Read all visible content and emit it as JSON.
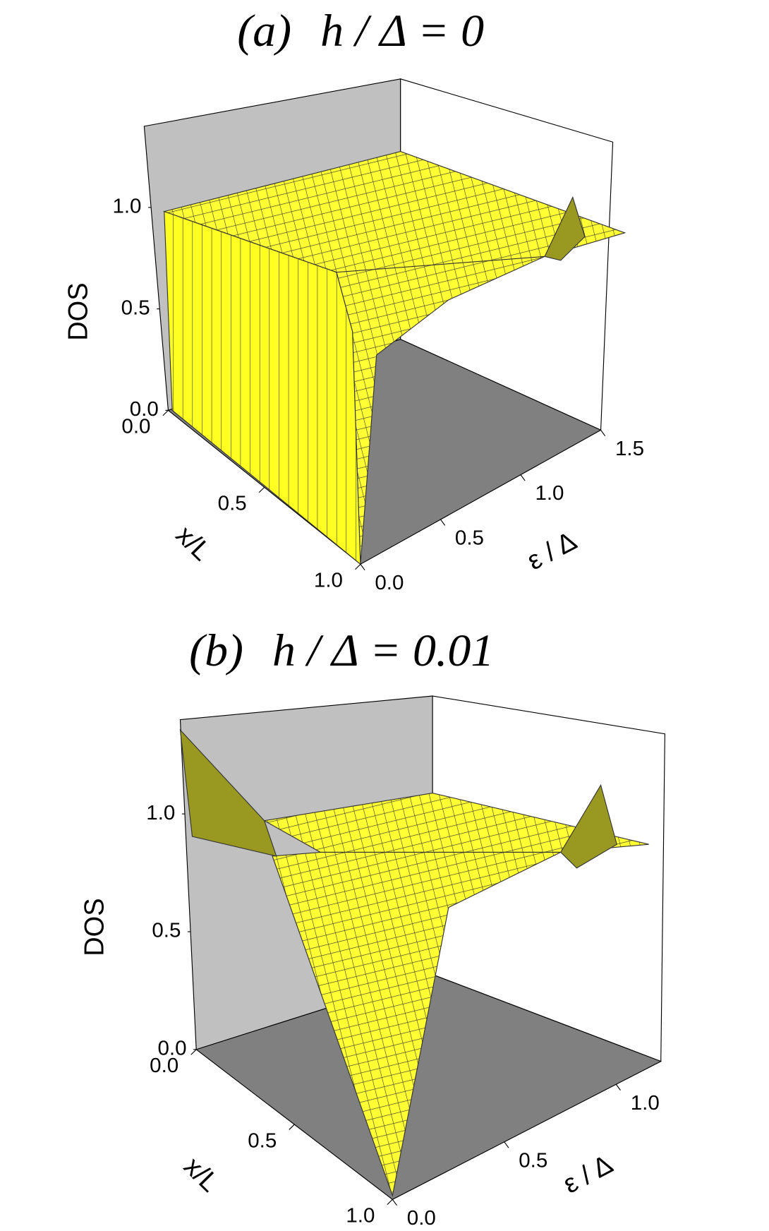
{
  "panels": [
    {
      "label": "(a)",
      "title": "h / Δ = 0",
      "z_label": "DOS",
      "x_label": "x/L",
      "y_label": "ε / Δ",
      "zlim": [
        0,
        1.4
      ],
      "zticks": [
        {
          "value": 0,
          "label": "0.0"
        },
        {
          "value": 0.5,
          "label": "0.5"
        },
        {
          "value": 1,
          "label": "1.0"
        }
      ],
      "xlim": [
        0,
        1
      ],
      "xticks": [
        {
          "value": 0,
          "label": "0.0"
        },
        {
          "value": 0.5,
          "label": "0.5"
        },
        {
          "value": 1,
          "label": "1.0"
        }
      ],
      "ylim": [
        0,
        1.5
      ],
      "yticks": [
        {
          "value": 0,
          "label": "0.0"
        },
        {
          "value": 0.5,
          "label": "0.5"
        },
        {
          "value": 1,
          "label": "1.0"
        },
        {
          "value": 1.5,
          "label": "1.5"
        }
      ]
    },
    {
      "label": "(b)",
      "title": "h / Δ = 0.01",
      "z_label": "DOS",
      "x_label": "x/L",
      "y_label": "ε / Δ",
      "zlim": [
        0,
        1.4
      ],
      "zticks": [
        {
          "value": 0,
          "label": "0.0"
        },
        {
          "value": 0.5,
          "label": "0.5"
        },
        {
          "value": 1,
          "label": "1.0"
        }
      ],
      "xlim": [
        0,
        1
      ],
      "xticks": [
        {
          "value": 0,
          "label": "0.0"
        },
        {
          "value": 0.5,
          "label": "0.5"
        },
        {
          "value": 1,
          "label": "1.0"
        }
      ],
      "ylim": [
        0,
        1.2
      ],
      "yticks": [
        {
          "value": 0,
          "label": "0.0"
        },
        {
          "value": 0.5,
          "label": "0.5"
        },
        {
          "value": 1,
          "label": "1.0"
        }
      ]
    }
  ]
}
